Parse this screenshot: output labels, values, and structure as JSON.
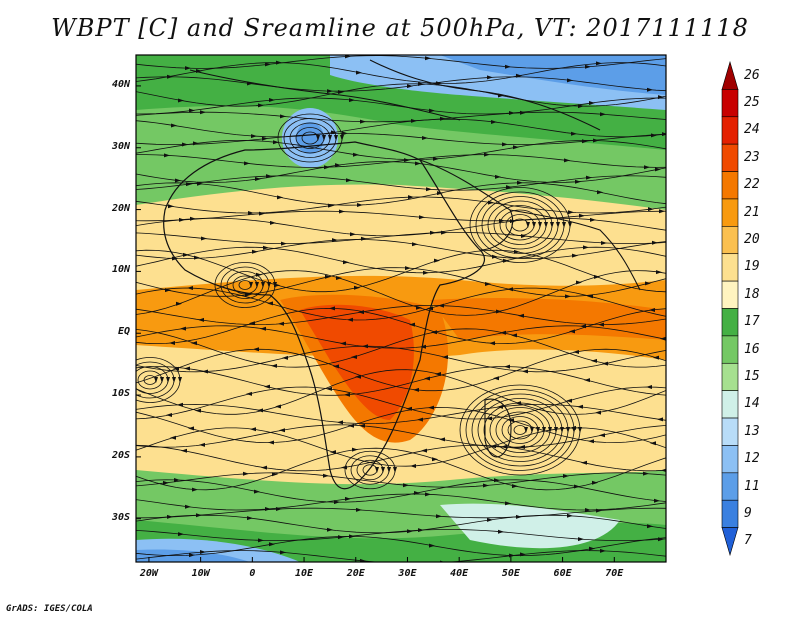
{
  "title": "WBPT [C] and Sreamline at 500hPa, VT: 2017111118",
  "map": {
    "lat_ticks": [
      {
        "label": "40N",
        "value": 40
      },
      {
        "label": "30N",
        "value": 30
      },
      {
        "label": "20N",
        "value": 20
      },
      {
        "label": "10N",
        "value": 10
      },
      {
        "label": "EQ",
        "value": 0
      },
      {
        "label": "10S",
        "value": -10
      },
      {
        "label": "20S",
        "value": -20
      },
      {
        "label": "30S",
        "value": -30
      }
    ],
    "lon_ticks": [
      {
        "label": "20W",
        "value": -20
      },
      {
        "label": "10W",
        "value": -10
      },
      {
        "label": "0",
        "value": 0
      },
      {
        "label": "10E",
        "value": 10
      },
      {
        "label": "20E",
        "value": 20
      },
      {
        "label": "30E",
        "value": 30
      },
      {
        "label": "40E",
        "value": 40
      },
      {
        "label": "50E",
        "value": 50
      },
      {
        "label": "60E",
        "value": 60
      },
      {
        "label": "70E",
        "value": 70
      }
    ],
    "lon_range": [
      -22.5,
      80
    ],
    "lat_range": [
      -37,
      45
    ]
  },
  "colorbar": {
    "labels": [
      "26",
      "25",
      "24",
      "23",
      "22",
      "21",
      "20",
      "19",
      "18",
      "17",
      "16",
      "15",
      "14",
      "13",
      "12",
      "11",
      "9",
      "7"
    ],
    "colors": [
      "#a00000",
      "#c80000",
      "#e42000",
      "#f04a00",
      "#f47800",
      "#f89a10",
      "#fbc050",
      "#fde090",
      "#fff4c0",
      "#44b044",
      "#74c864",
      "#a6e090",
      "#d0f0e8",
      "#b8dcf8",
      "#8cc0f4",
      "#5c9ee8",
      "#3a80e0",
      "#2060d8"
    ]
  },
  "credit": "GrADS: IGES/COLA"
}
